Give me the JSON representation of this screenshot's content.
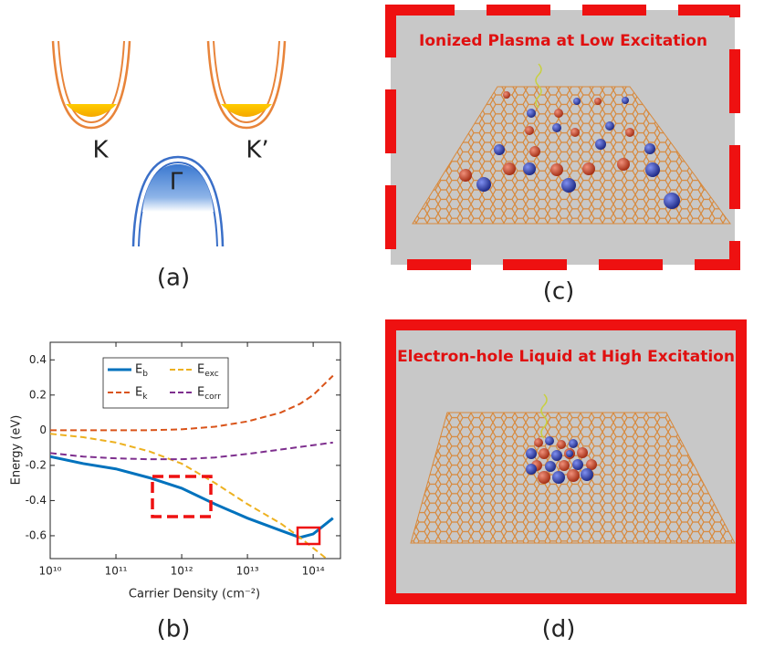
{
  "panel_a": {
    "labels": [
      "K",
      "K’",
      "Γ"
    ],
    "caption": "(a)"
  },
  "panel_b": {
    "caption": "(b)"
  },
  "panel_c": {
    "title": "Ionized Plasma at Low Excitation",
    "caption": "(c)"
  },
  "panel_d": {
    "title": "Electron-hole Liquid at High Excitation",
    "caption": "(d)"
  },
  "chart_data": {
    "type": "line",
    "xlabel": "Carrier Density (cm⁻²)",
    "ylabel": "Energy (eV)",
    "xscale": "log",
    "x": [
      10000000000.0,
      32000000000.0,
      100000000000.0,
      320000000000.0,
      1000000000000.0,
      3200000000000.0,
      10000000000000.0,
      32000000000000.0,
      63000000000000.0,
      100000000000000.0,
      200000000000000.0
    ],
    "series": [
      {
        "name": "Eb",
        "color": "#0072bd",
        "linestyle": "solid",
        "values": [
          -0.15,
          -0.19,
          -0.22,
          -0.27,
          -0.33,
          -0.42,
          -0.5,
          -0.57,
          -0.61,
          -0.59,
          -0.5
        ]
      },
      {
        "name": "Eexc",
        "color": "#edb120",
        "linestyle": "dashed",
        "values": [
          -0.02,
          -0.04,
          -0.07,
          -0.12,
          -0.19,
          -0.3,
          -0.42,
          -0.53,
          -0.61,
          -0.67,
          -0.76
        ]
      },
      {
        "name": "Ek",
        "color": "#d95319",
        "linestyle": "dashed",
        "values": [
          0,
          0,
          0,
          0,
          0.005,
          0.02,
          0.05,
          0.1,
          0.15,
          0.2,
          0.31
        ]
      },
      {
        "name": "Ecorr",
        "color": "#7e2f8e",
        "linestyle": "dashed",
        "values": [
          -0.13,
          -0.15,
          -0.16,
          -0.165,
          -0.165,
          -0.155,
          -0.135,
          -0.11,
          -0.095,
          -0.085,
          -0.07
        ]
      }
    ],
    "xlim": [
      10000000000.0,
      260000000000000.0
    ],
    "xticks": [
      {
        "value": 10000000000.0,
        "label": "10¹⁰"
      },
      {
        "value": 100000000000.0,
        "label": "10¹¹"
      },
      {
        "value": 1000000000000.0,
        "label": "10¹²"
      },
      {
        "value": 10000000000000.0,
        "label": "10¹³"
      },
      {
        "value": 100000000000000.0,
        "label": "10¹⁴"
      }
    ],
    "ylim": [
      -0.73,
      0.5
    ],
    "yticks": [
      0.4,
      0.2,
      0,
      -0.2,
      -0.4,
      -0.6
    ]
  }
}
